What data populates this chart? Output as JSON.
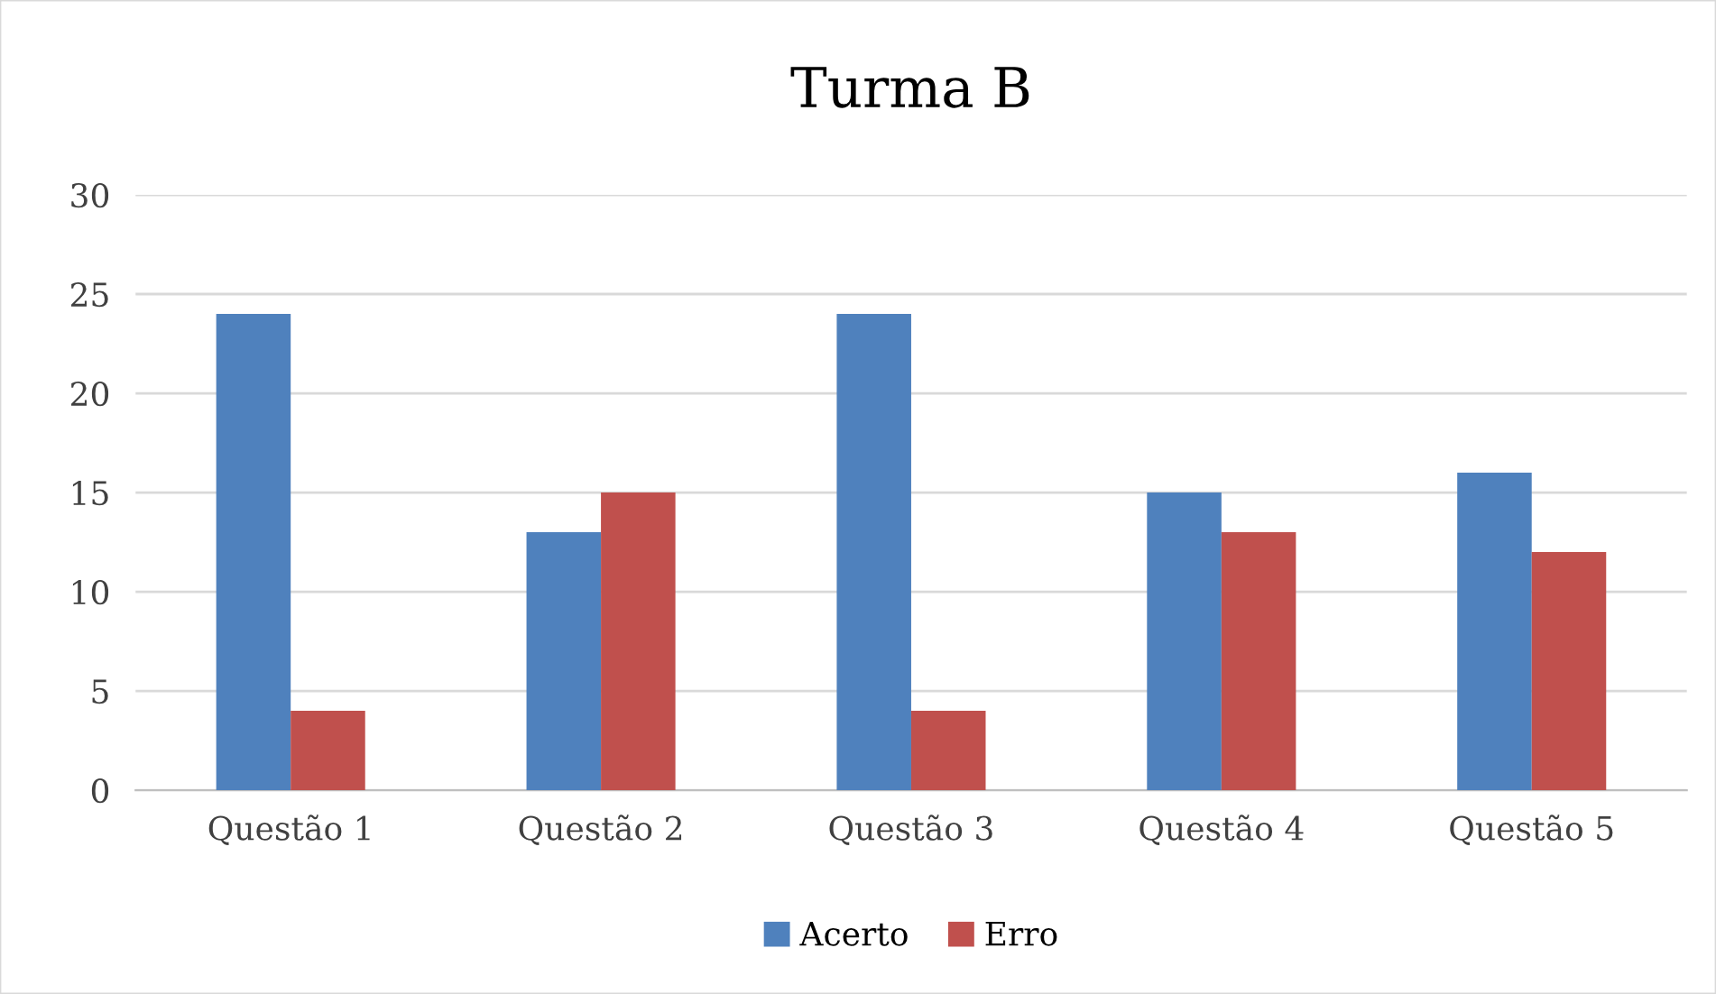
{
  "chart_data": {
    "type": "bar",
    "title": "Turma B",
    "categories": [
      "Questão 1",
      "Questão 2",
      "Questão 3",
      "Questão 4",
      "Questão 5"
    ],
    "series": [
      {
        "name": "Acerto",
        "color": "#4f81bd",
        "values": [
          24,
          13,
          24,
          15,
          16
        ]
      },
      {
        "name": "Erro",
        "color": "#c0504d",
        "values": [
          4,
          15,
          4,
          13,
          12
        ]
      }
    ],
    "ylim": [
      0,
      30
    ],
    "yticks": [
      0,
      5,
      10,
      15,
      20,
      25,
      30
    ],
    "grid": "y",
    "legend": "bottom"
  }
}
